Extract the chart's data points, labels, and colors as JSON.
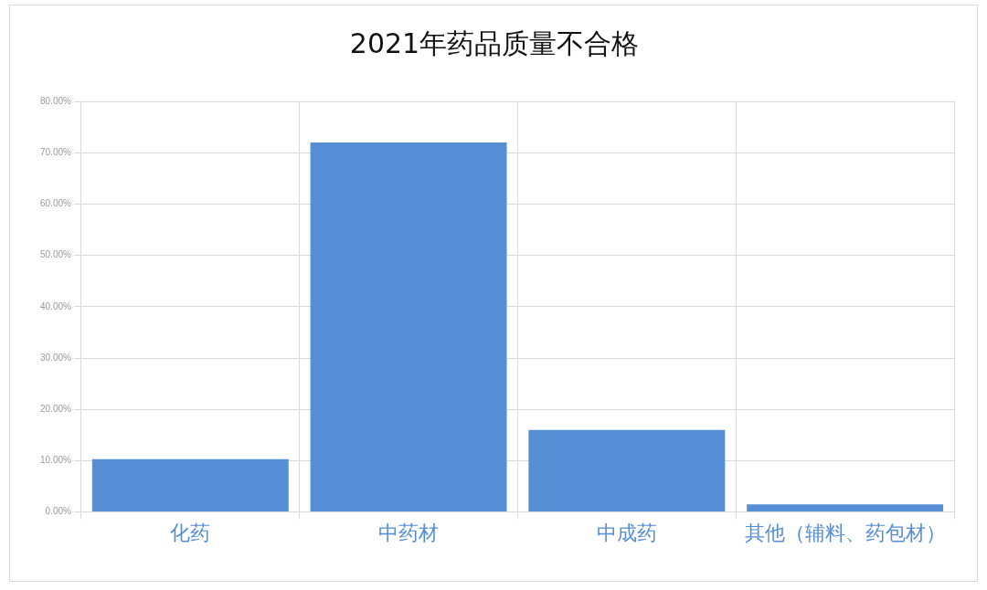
{
  "chart_data": {
    "type": "bar",
    "title": "2021年药品质量不合格",
    "categories": [
      "化药",
      "中药材",
      "中成药",
      "其他（辅料、药包材）"
    ],
    "values": [
      10.3,
      72,
      16,
      1.5
    ],
    "color": "#558ed5",
    "ylim": [
      0,
      80
    ],
    "yticks": [
      {
        "value": 0,
        "label": "0.00%"
      },
      {
        "value": 10,
        "label": "10.00%"
      },
      {
        "value": 20,
        "label": "20.00%"
      },
      {
        "value": 30,
        "label": "30.00%"
      },
      {
        "value": 40,
        "label": "40.00%"
      },
      {
        "value": 50,
        "label": "50.00%"
      },
      {
        "value": 60,
        "label": "60.00%"
      },
      {
        "value": 70,
        "label": "70.00%"
      },
      {
        "value": 80,
        "label": "80.00%"
      }
    ],
    "grid": true,
    "legend": false
  }
}
